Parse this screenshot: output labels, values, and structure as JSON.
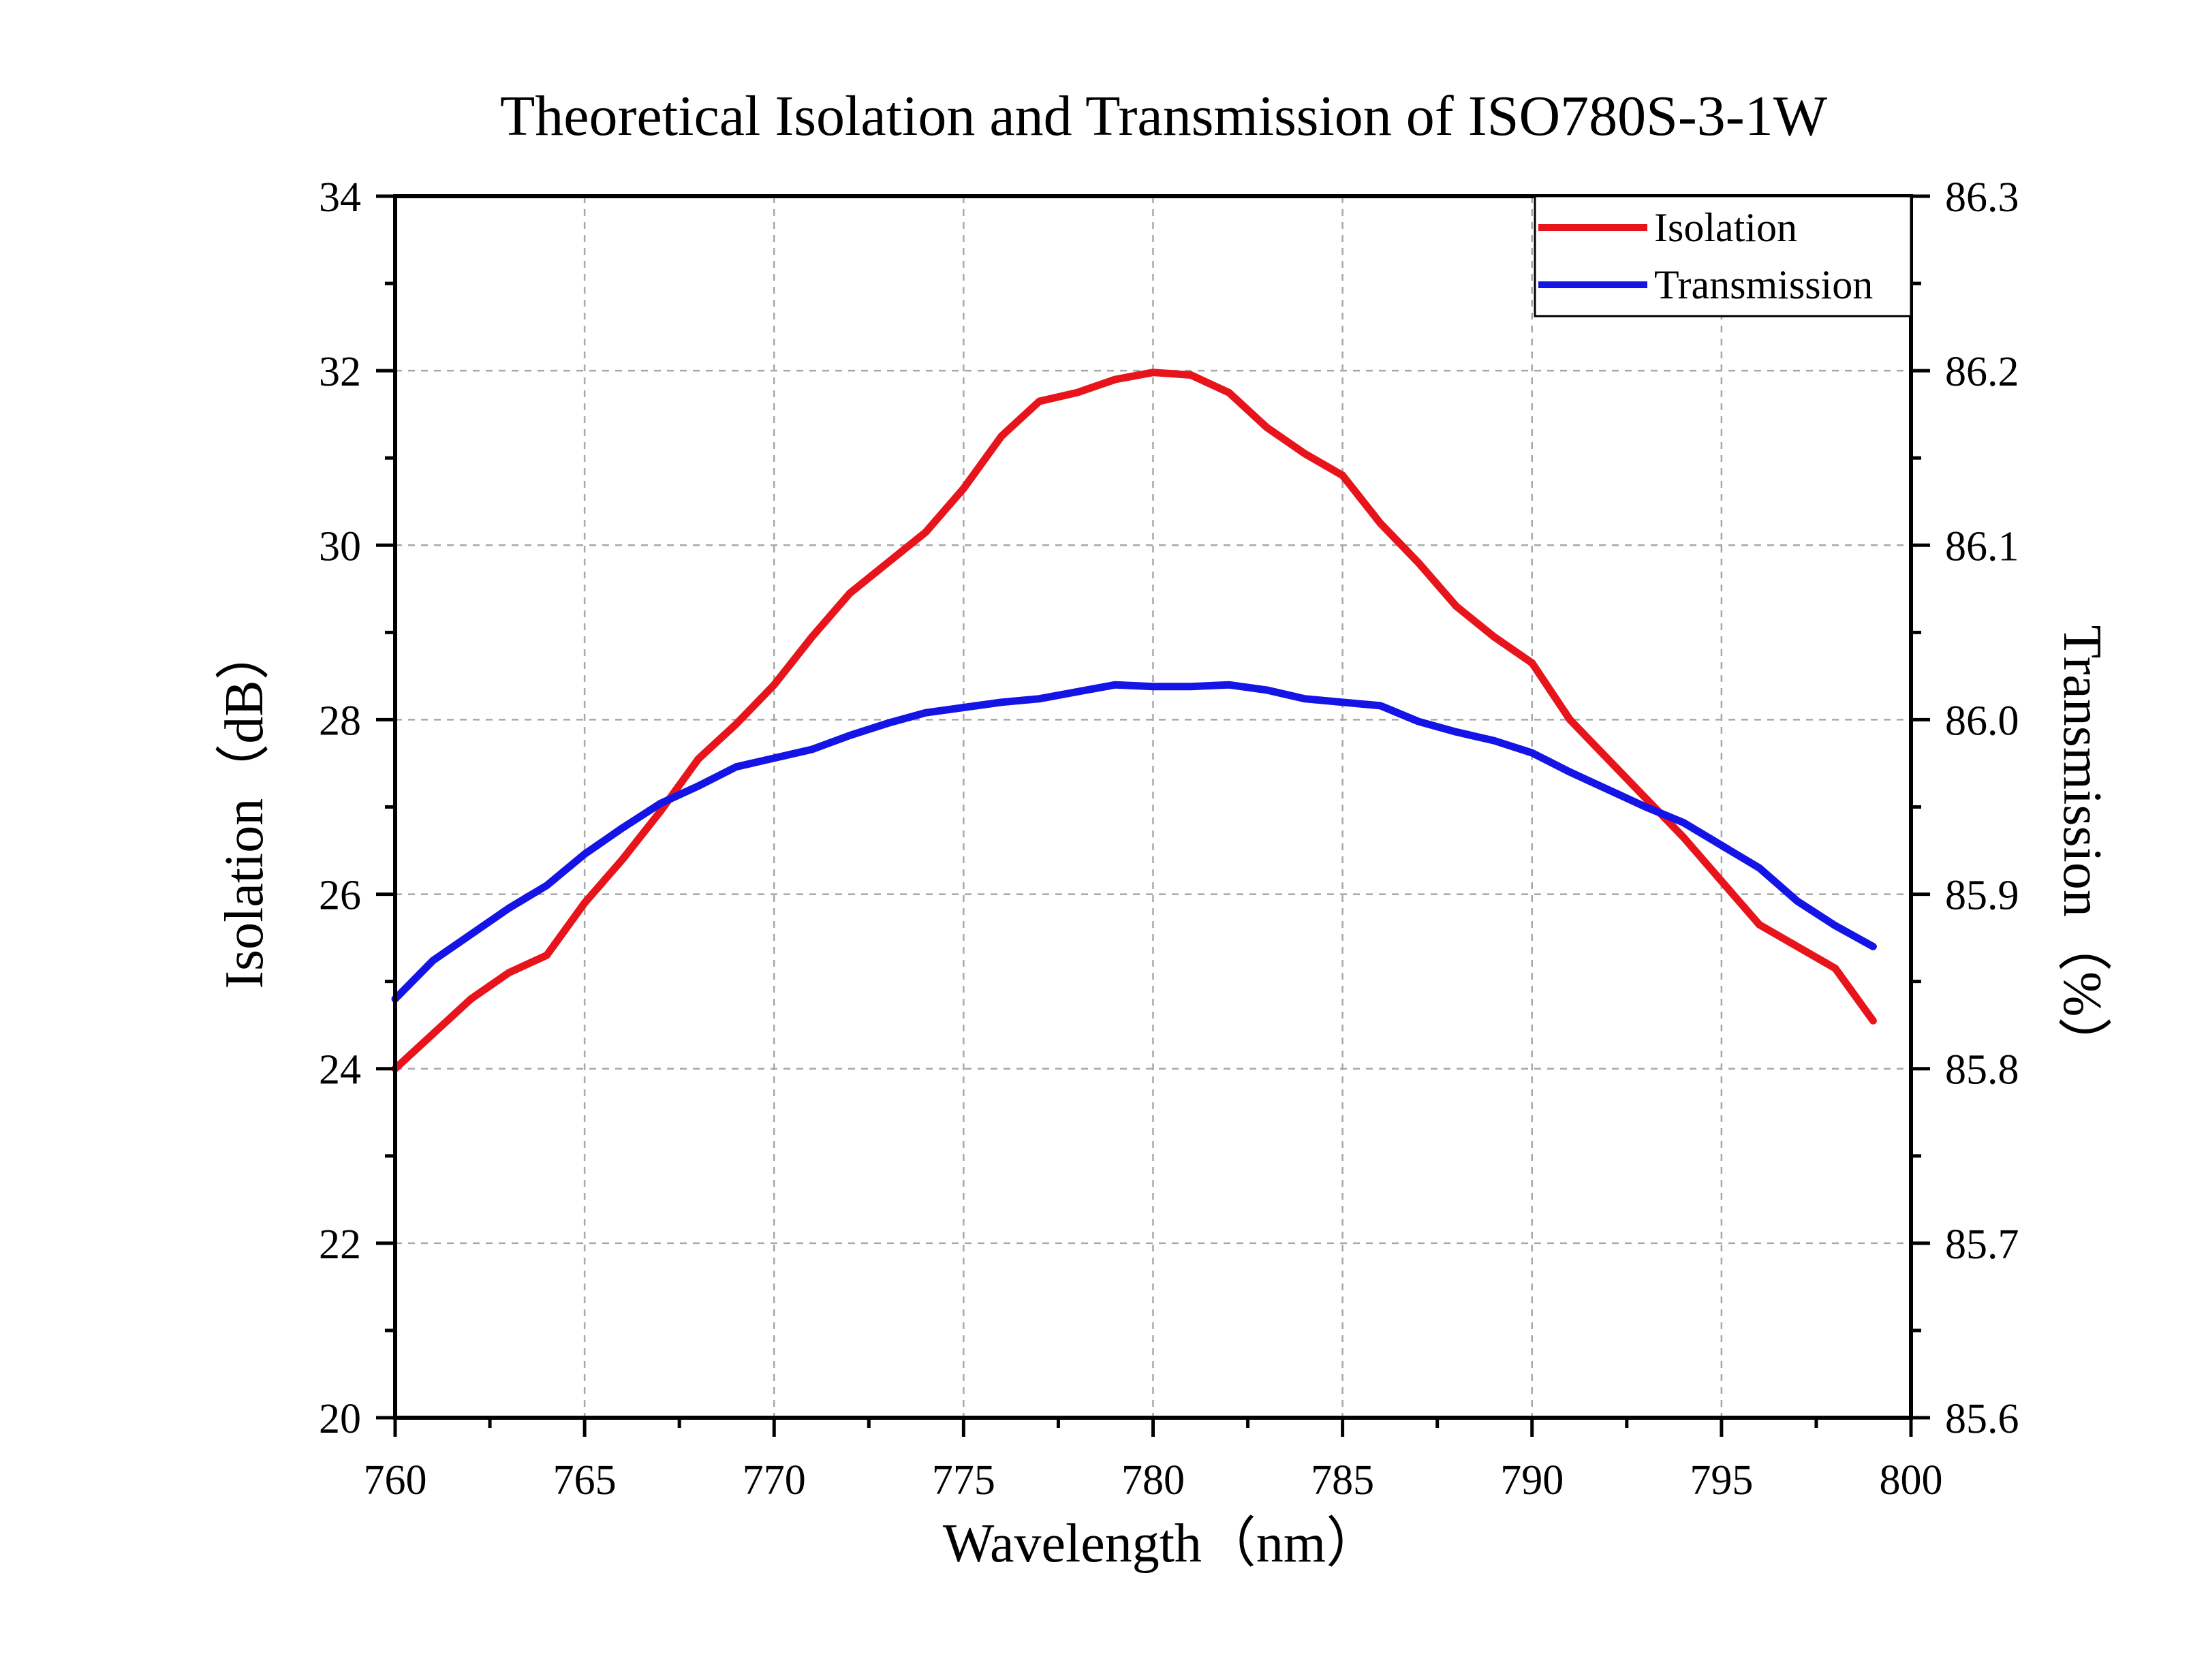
{
  "chart_data": {
    "type": "line",
    "title": "Theoretical Isolation and Transmission of ISO780S-3-1W",
    "xlabel": "Wavelength（nm）",
    "ylabel": "Isolation（dB）",
    "y2label": "Transmission（%）",
    "xlim": [
      760,
      800
    ],
    "ylim": [
      20,
      34
    ],
    "y2lim": [
      85.6,
      86.3
    ],
    "x_ticks": [
      "760",
      "765",
      "770",
      "775",
      "780",
      "785",
      "790",
      "795",
      "800"
    ],
    "y_ticks": [
      "20",
      "22",
      "24",
      "26",
      "28",
      "30",
      "32",
      "34"
    ],
    "y2_ticks": [
      "85.6",
      "85.7",
      "85.8",
      "85.9",
      "86.0",
      "86.1",
      "86.2",
      "86.3"
    ],
    "grid": true,
    "legend_position": "top-right",
    "x": [
      760,
      761,
      762,
      763,
      764,
      765,
      766,
      767,
      768,
      769,
      770,
      771,
      772,
      773,
      774,
      775,
      776,
      777,
      778,
      779,
      780,
      781,
      782,
      783,
      784,
      785,
      786,
      787,
      788,
      789,
      790,
      791,
      792,
      793,
      794,
      795,
      796,
      797,
      798,
      799
    ],
    "series": [
      {
        "name": "Isolation",
        "axis": "left",
        "color": "#e8141c",
        "values": [
          24.0,
          24.4,
          24.8,
          25.1,
          25.3,
          25.9,
          26.4,
          26.95,
          27.55,
          27.95,
          28.4,
          28.95,
          29.45,
          29.8,
          30.15,
          30.65,
          31.25,
          31.65,
          31.75,
          31.9,
          31.98,
          31.95,
          31.75,
          31.35,
          31.05,
          30.8,
          30.25,
          29.8,
          29.3,
          28.95,
          28.65,
          28.0,
          27.55,
          27.1,
          26.65,
          26.15,
          25.65,
          25.4,
          25.15,
          24.55
        ]
      },
      {
        "name": "Transmission",
        "axis": "right",
        "color": "#1414e6",
        "values": [
          85.84,
          85.862,
          85.877,
          85.892,
          85.905,
          85.923,
          85.938,
          85.952,
          85.962,
          85.973,
          85.978,
          85.983,
          85.991,
          85.998,
          86.004,
          86.007,
          86.01,
          86.012,
          86.016,
          86.02,
          86.019,
          86.019,
          86.02,
          86.017,
          86.012,
          86.01,
          86.008,
          85.999,
          85.993,
          85.988,
          85.981,
          85.97,
          85.96,
          85.95,
          85.941,
          85.928,
          85.915,
          85.896,
          85.882,
          85.87
        ]
      }
    ]
  }
}
